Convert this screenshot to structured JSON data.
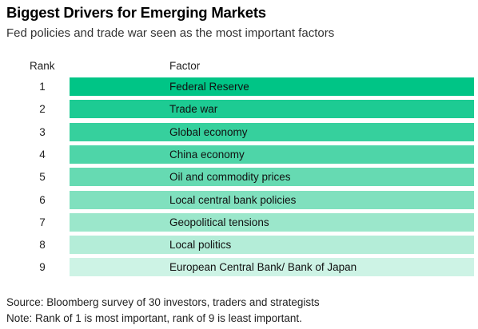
{
  "header": {
    "title": "Biggest Drivers for Emerging Markets",
    "subtitle": "Fed policies and trade war seen as the most important factors"
  },
  "table": {
    "col_rank": "Rank",
    "col_factor": "Factor"
  },
  "footer": {
    "source": "Source: Bloomberg survey of 30 investors, traders and strategists",
    "note": "Note: Rank of 1 is most important, rank of 9 is least important."
  },
  "colors": {
    "bar_scale": [
      "#00c586",
      "#1dcb93",
      "#36d09d",
      "#4ed5a8",
      "#66dab2",
      "#80e0be",
      "#9be7cb",
      "#b4edd8",
      "#cdf3e5"
    ]
  },
  "chart_data": {
    "type": "table",
    "title": "Biggest Drivers for Emerging Markets",
    "subtitle": "Fed policies and trade war seen as the most important factors",
    "columns": [
      "Rank",
      "Factor"
    ],
    "rows": [
      {
        "rank": "1",
        "factor": "Federal Reserve"
      },
      {
        "rank": "2",
        "factor": "Trade war"
      },
      {
        "rank": "3",
        "factor": "Global economy"
      },
      {
        "rank": "4",
        "factor": "China economy"
      },
      {
        "rank": "5",
        "factor": "Oil and commodity prices"
      },
      {
        "rank": "6",
        "factor": "Local central bank policies"
      },
      {
        "rank": "7",
        "factor": "Geopolitical tensions"
      },
      {
        "rank": "8",
        "factor": "Local politics"
      },
      {
        "rank": "9",
        "factor": "European Central Bank/ Bank of Japan"
      }
    ]
  }
}
